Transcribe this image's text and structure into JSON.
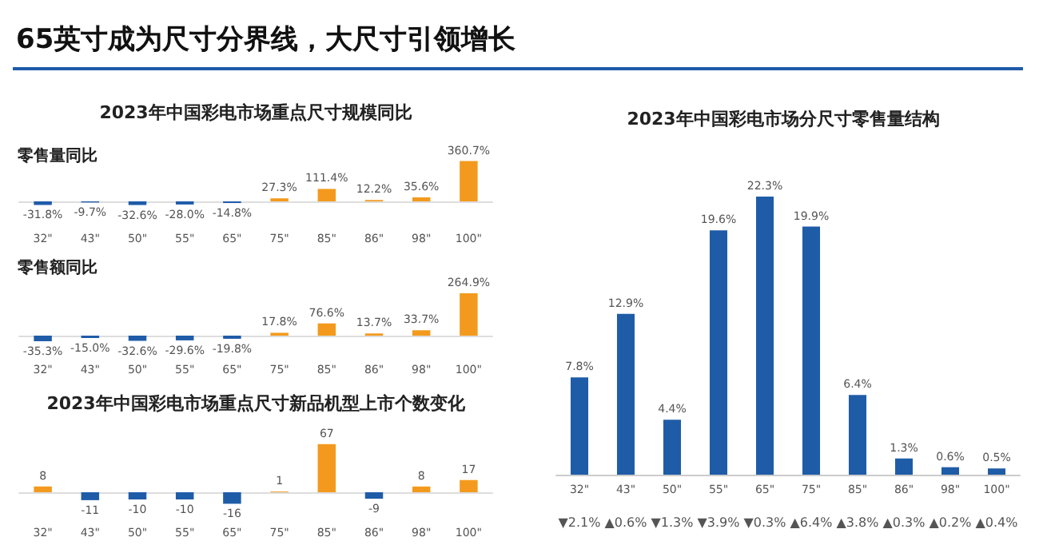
{
  "chart_data": [
    {
      "type": "other",
      "title": "65英寸成为尺寸分界线，大尺寸引领增长"
    },
    {
      "type": "bar",
      "title": "2023年中国彩电市场重点尺寸规模同比",
      "ylabel": "零售量同比",
      "categories": [
        "32\"",
        "43\"",
        "50\"",
        "55\"",
        "65\"",
        "75\"",
        "85\"",
        "86\"",
        "98\"",
        "100\""
      ],
      "values": [
        -31.8,
        -9.7,
        -32.6,
        -28.0,
        -14.8,
        27.3,
        111.4,
        12.2,
        35.6,
        360.7
      ],
      "value_labels": [
        "-31.8%",
        "-9.7%",
        "-32.6%",
        "-28.0%",
        "-14.8%",
        "27.3%",
        "111.4%",
        "12.2%",
        "35.6%",
        "360.7%"
      ],
      "colors": [
        "#1f5ca8",
        "#1f5ca8",
        "#1f5ca8",
        "#1f5ca8",
        "#1f5ca8",
        "#f39a1e",
        "#f39a1e",
        "#f39a1e",
        "#f39a1e",
        "#f39a1e"
      ]
    },
    {
      "type": "bar",
      "ylabel": "零售额同比",
      "categories": [
        "32\"",
        "43\"",
        "50\"",
        "55\"",
        "65\"",
        "75\"",
        "85\"",
        "86\"",
        "98\"",
        "100\""
      ],
      "values": [
        -35.3,
        -15.0,
        -32.6,
        -29.6,
        -19.8,
        17.8,
        76.6,
        13.7,
        33.7,
        264.9
      ],
      "value_labels": [
        "-35.3%",
        "-15.0%",
        "-32.6%",
        "-29.6%",
        "-19.8%",
        "17.8%",
        "76.6%",
        "13.7%",
        "33.7%",
        "264.9%"
      ],
      "colors": [
        "#1f5ca8",
        "#1f5ca8",
        "#1f5ca8",
        "#1f5ca8",
        "#1f5ca8",
        "#f39a1e",
        "#f39a1e",
        "#f39a1e",
        "#f39a1e",
        "#f39a1e"
      ]
    },
    {
      "type": "bar",
      "title": "2023年中国彩电市场重点尺寸新品机型上市个数变化",
      "categories": [
        "32\"",
        "43\"",
        "50\"",
        "55\"",
        "65\"",
        "75\"",
        "85\"",
        "86\"",
        "98\"",
        "100\""
      ],
      "values": [
        8,
        -11,
        -10,
        -10,
        -16,
        1,
        67,
        -9,
        8,
        17
      ],
      "data_labels": true,
      "colors": [
        "#f39a1e",
        "#1f5ca8",
        "#1f5ca8",
        "#1f5ca8",
        "#1f5ca8",
        "#f39a1e",
        "#f39a1e",
        "#1f5ca8",
        "#f39a1e",
        "#f39a1e"
      ]
    },
    {
      "type": "bar",
      "title": "2023年中国彩电市场分尺寸零售量结构",
      "categories": [
        "32\"",
        "43\"",
        "50\"",
        "55\"",
        "65\"",
        "75\"",
        "85\"",
        "86\"",
        "98\"",
        "100\""
      ],
      "values": [
        7.8,
        12.9,
        4.4,
        19.6,
        22.3,
        19.9,
        6.4,
        1.3,
        0.6,
        0.5
      ],
      "value_labels": [
        "7.8%",
        "12.9%",
        "4.4%",
        "19.6%",
        "22.3%",
        "19.9%",
        "6.4%",
        "1.3%",
        "0.6%",
        "0.5%"
      ],
      "color": "#1f5ca8",
      "annotations": [
        "▼2.1%",
        "▲0.6%",
        "▼1.3%",
        "▼3.9%",
        "▼0.3%",
        "▲6.4%",
        "▲3.8%",
        "▲0.3%",
        "▲0.2%",
        "▲0.4%"
      ]
    }
  ]
}
